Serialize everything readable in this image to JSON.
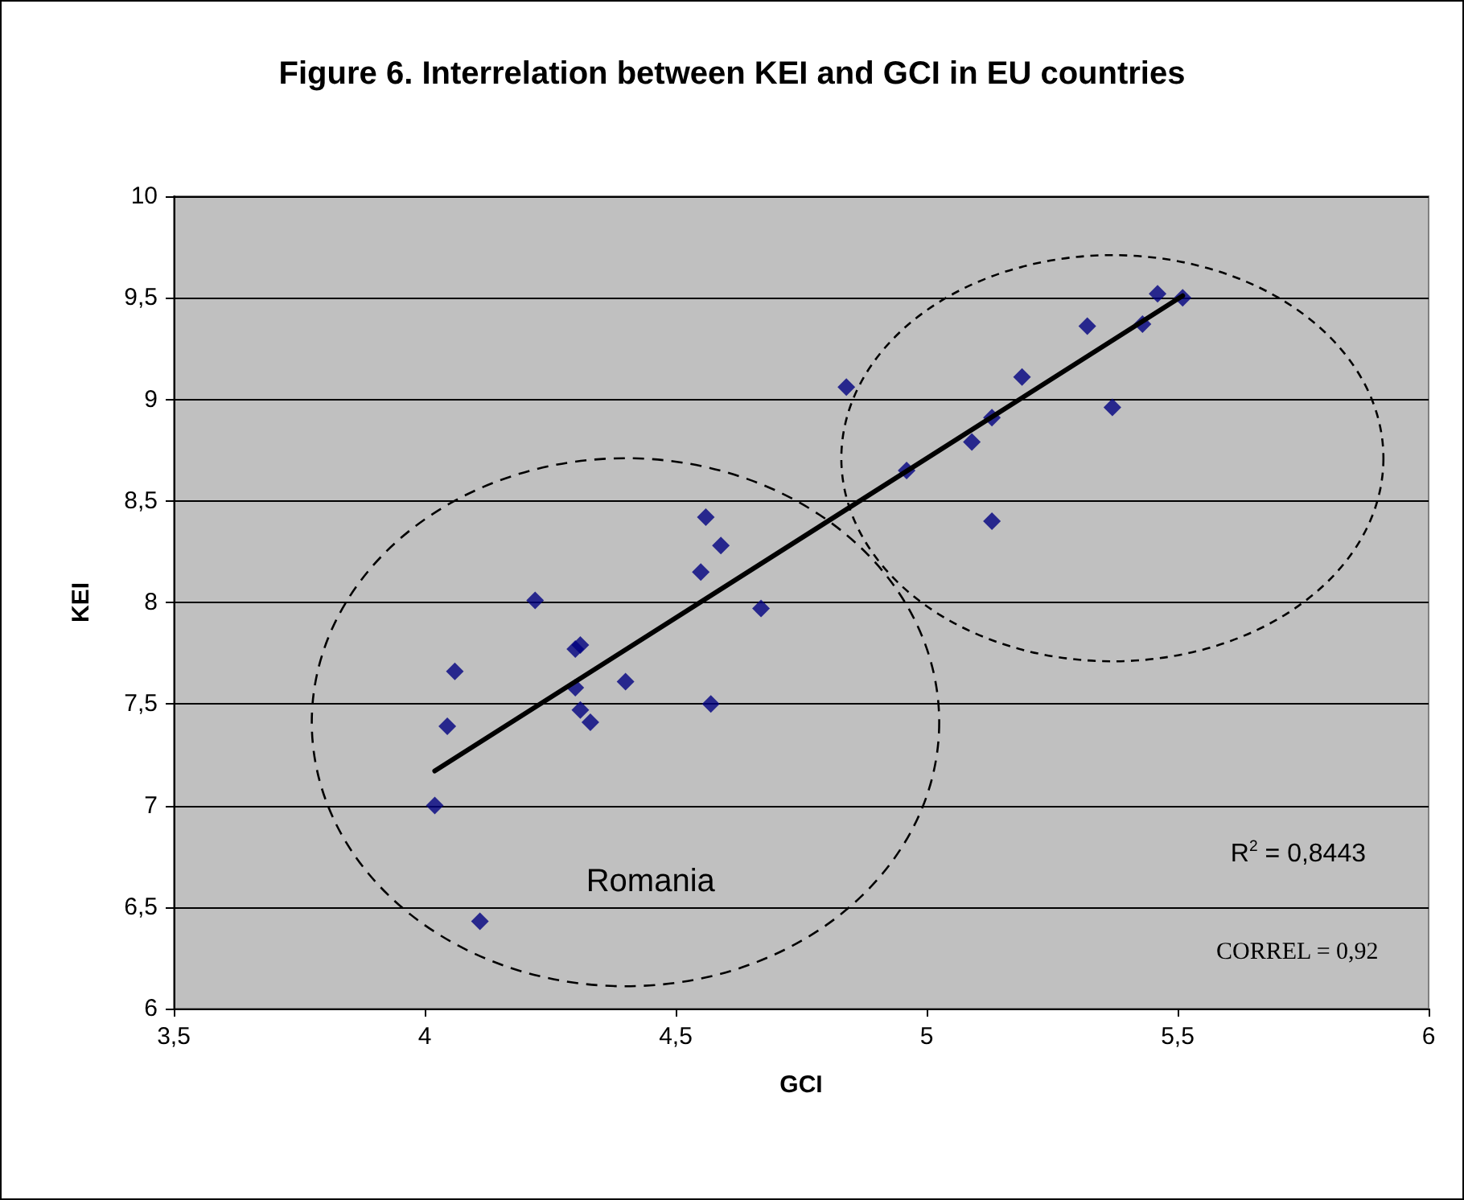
{
  "chart_data": {
    "type": "scatter",
    "title": "Figure 6. Interrelation between KEI and GCI in EU countries",
    "xlabel": "GCI",
    "ylabel": "KEI",
    "series": [
      {
        "color": "#000080",
        "marker": "diamond",
        "x": [
          4.02,
          4.045,
          4.06,
          4.11,
          4.22,
          4.3,
          4.31,
          4.3,
          4.31,
          4.33,
          4.4,
          4.55,
          4.56,
          4.57,
          4.59,
          4.67,
          4.84,
          4.96,
          5.09,
          5.13,
          5.13,
          5.19,
          5.32,
          5.37,
          5.43,
          5.46,
          5.51
        ],
        "values": [
          7.0,
          7.39,
          7.66,
          6.43,
          8.01,
          7.77,
          7.79,
          7.58,
          7.47,
          7.41,
          7.61,
          8.15,
          8.42,
          7.5,
          8.28,
          7.97,
          9.06,
          8.65,
          8.79,
          8.91,
          8.4,
          9.11,
          9.36,
          8.96,
          9.37,
          9.52,
          9.5
        ]
      },
      {
        "type": "line",
        "color": "#000000",
        "marker": "none",
        "line_style": "solid",
        "x": [
          4.02,
          5.51
        ],
        "values": [
          7.17,
          9.51
        ]
      }
    ],
    "xlim": [
      3.5,
      6
    ],
    "xticks": [
      {
        "value": 3.5,
        "label": "3,5"
      },
      4,
      {
        "value": 4.5,
        "label": "4,5"
      },
      5,
      {
        "value": 5.5,
        "label": "5,5"
      },
      6
    ],
    "ylim": [
      6,
      10
    ],
    "yticks": [
      6,
      {
        "value": 6.5,
        "label": "6,5"
      },
      7,
      {
        "value": 7.5,
        "label": "7,5"
      },
      8,
      {
        "value": 8.5,
        "label": "8,5"
      },
      9,
      {
        "value": 9.5,
        "label": "9,5"
      },
      10
    ],
    "grid": "y",
    "annotations": [
      "Romania",
      "R$^{2}$ = 0,8443",
      "CORREL = 0,92"
    ]
  }
}
